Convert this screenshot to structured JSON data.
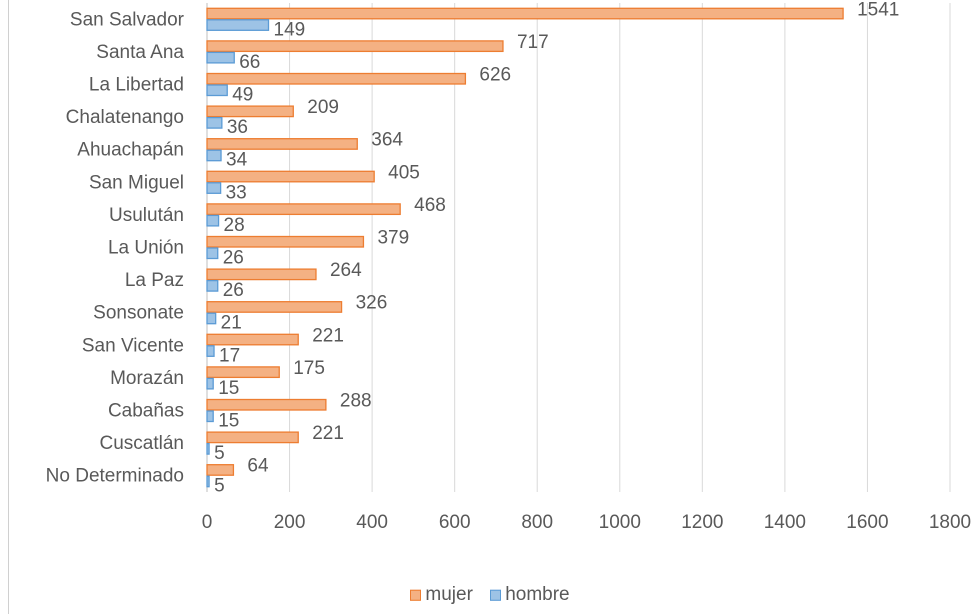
{
  "chart_data": {
    "type": "bar",
    "orientation": "horizontal",
    "categories": [
      "San Salvador",
      "Santa Ana",
      "La Libertad",
      "Chalatenango",
      "Ahuachapán",
      "San Miguel",
      "Usulután",
      "La Unión",
      "La Paz",
      "Sonsonate",
      "San Vicente",
      "Morazán",
      "Cabañas",
      "Cuscatlán",
      "No Determinado"
    ],
    "series": [
      {
        "name": "mujer",
        "values": [
          1541,
          717,
          626,
          209,
          364,
          405,
          468,
          379,
          264,
          326,
          221,
          175,
          288,
          221,
          64
        ],
        "color": "#F4B183",
        "border": "#ED7D31"
      },
      {
        "name": "hombre",
        "values": [
          149,
          66,
          49,
          36,
          34,
          33,
          28,
          26,
          26,
          21,
          17,
          15,
          15,
          5,
          5
        ],
        "color": "#9DC3E6",
        "border": "#5B9BD5"
      }
    ],
    "xlim": [
      0,
      1800
    ],
    "xticks": [
      0,
      200,
      400,
      600,
      800,
      1000,
      1200,
      1400,
      1600,
      1800
    ],
    "grid": true,
    "legend_position": "bottom",
    "title": "",
    "xlabel": "",
    "ylabel": ""
  }
}
